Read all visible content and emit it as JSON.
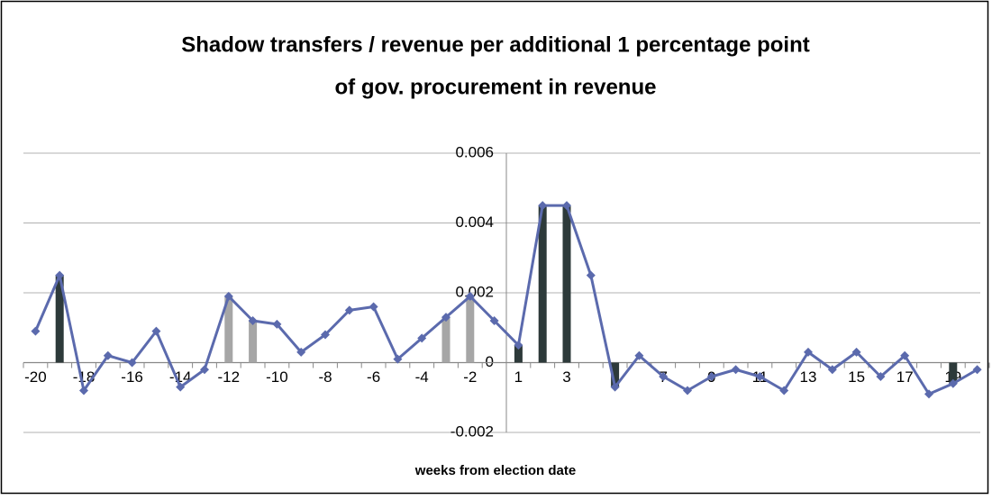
{
  "chart_data": {
    "type": "line",
    "title": [
      "Shadow transfers / revenue per additional 1 percentage point",
      "of gov. procurement in revenue"
    ],
    "x_label": "weeks from election date",
    "categories": [
      "-20",
      null,
      "-18",
      null,
      "-16",
      null,
      "-14",
      null,
      "-12",
      null,
      "-10",
      null,
      "-8",
      null,
      "-6",
      null,
      "-4",
      null,
      "-2",
      null,
      "1",
      null,
      "3",
      null,
      "5",
      null,
      "7",
      null,
      "9",
      null,
      "11",
      null,
      "13",
      null,
      "15",
      null,
      "17",
      null,
      "19",
      null
    ],
    "ylim": [
      -0.002,
      0.006
    ],
    "yticks": [
      -0.002,
      0,
      0.002,
      0.004,
      0.006
    ],
    "grid": true,
    "series": [
      {
        "kind": "bar",
        "color": "#2d3a3a",
        "values": [
          null,
          0.0025,
          null,
          null,
          null,
          null,
          null,
          null,
          null,
          null,
          null,
          null,
          null,
          null,
          null,
          null,
          null,
          null,
          null,
          null,
          0.0005,
          0.0045,
          0.0045,
          null,
          -0.0007,
          null,
          null,
          null,
          null,
          null,
          null,
          null,
          null,
          null,
          null,
          null,
          null,
          null,
          -0.0006,
          null
        ]
      },
      {
        "kind": "bar",
        "color": "#a6a6a6",
        "values": [
          null,
          null,
          null,
          null,
          null,
          null,
          null,
          null,
          0.0019,
          0.0012,
          null,
          null,
          null,
          null,
          null,
          null,
          null,
          0.0013,
          0.0019,
          null,
          null,
          null,
          null,
          null,
          null,
          null,
          null,
          null,
          null,
          null,
          null,
          null,
          null,
          null,
          null,
          null,
          null,
          null,
          null,
          null
        ]
      },
      {
        "kind": "line",
        "color": "#5b6aad",
        "values": [
          0.0009,
          0.0025,
          -0.0008,
          0.0002,
          0.0,
          0.0009,
          -0.0007,
          -0.0002,
          0.0019,
          0.0012,
          0.0011,
          0.0003,
          0.0008,
          0.0015,
          0.0016,
          0.0001,
          0.0007,
          0.0013,
          0.0019,
          0.0012,
          0.0005,
          0.0045,
          0.0045,
          0.0025,
          -0.0007,
          0.0002,
          -0.0004,
          -0.0008,
          -0.0004,
          -0.0002,
          -0.0004,
          -0.0008,
          0.0003,
          -0.0002,
          0.0003,
          -0.0004,
          0.0002,
          -0.0009,
          -0.0006,
          -0.0002
        ]
      }
    ]
  }
}
